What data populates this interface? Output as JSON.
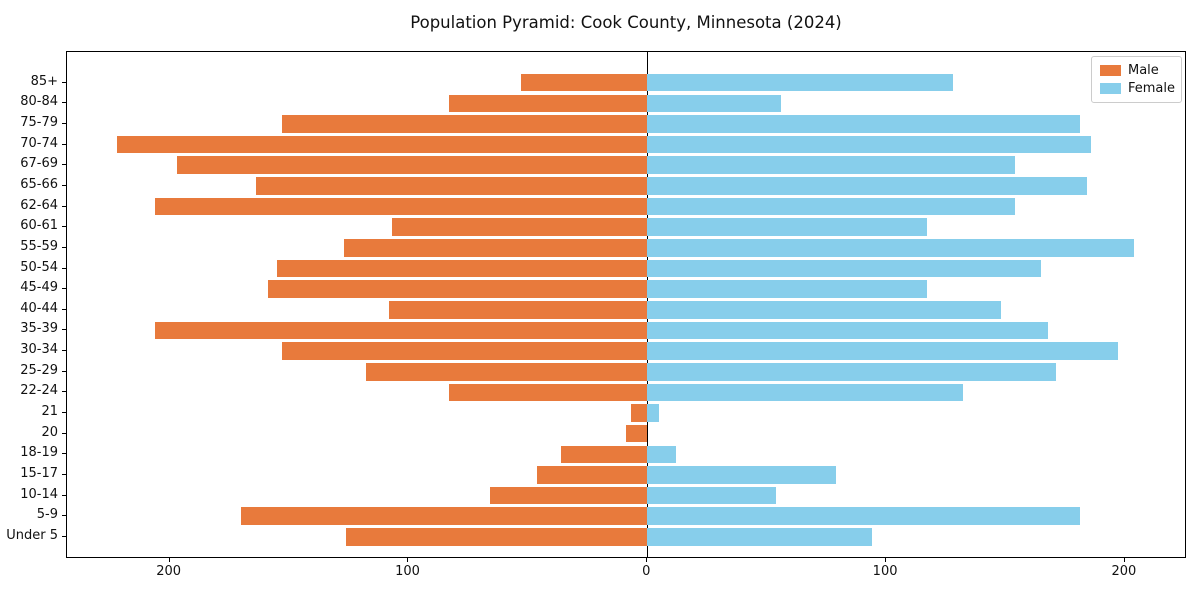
{
  "title": "Population Pyramid: Cook County, Minnesota (2024)",
  "legend": {
    "male_label": "Male",
    "female_label": "Female"
  },
  "colors": {
    "male": "#E87A3C",
    "female": "#87CEEB",
    "axis": "#000000"
  },
  "chart_data": {
    "type": "bar",
    "variant": "population-pyramid",
    "title": "Population Pyramid: Cook County, Minnesota (2024)",
    "categories": [
      "85+",
      "80-84",
      "75-79",
      "70-74",
      "67-69",
      "65-66",
      "62-64",
      "60-61",
      "55-59",
      "50-54",
      "45-49",
      "40-44",
      "35-39",
      "30-34",
      "25-29",
      "22-24",
      "21",
      "20",
      "18-19",
      "15-17",
      "10-14",
      "5-9",
      "Under 5"
    ],
    "series": [
      {
        "name": "Male",
        "side": "left",
        "color": "#E87A3C",
        "values": [
          53,
          83,
          153,
          222,
          197,
          164,
          206,
          107,
          127,
          155,
          159,
          108,
          206,
          153,
          118,
          83,
          7,
          9,
          36,
          46,
          66,
          170,
          126
        ]
      },
      {
        "name": "Female",
        "side": "right",
        "color": "#87CEEB",
        "values": [
          128,
          56,
          181,
          186,
          154,
          184,
          154,
          117,
          204,
          165,
          117,
          148,
          168,
          197,
          171,
          132,
          5,
          0,
          12,
          79,
          54,
          181,
          94
        ]
      }
    ],
    "x_ticks": [
      {
        "value": -200,
        "label": "200"
      },
      {
        "value": -100,
        "label": "100"
      },
      {
        "value": 0,
        "label": "0"
      },
      {
        "value": 100,
        "label": "100"
      },
      {
        "value": 200,
        "label": "200"
      }
    ],
    "xlim": [
      -243,
      226
    ],
    "grid": false,
    "legend_position": "upper right",
    "center_axis_value": 0
  }
}
